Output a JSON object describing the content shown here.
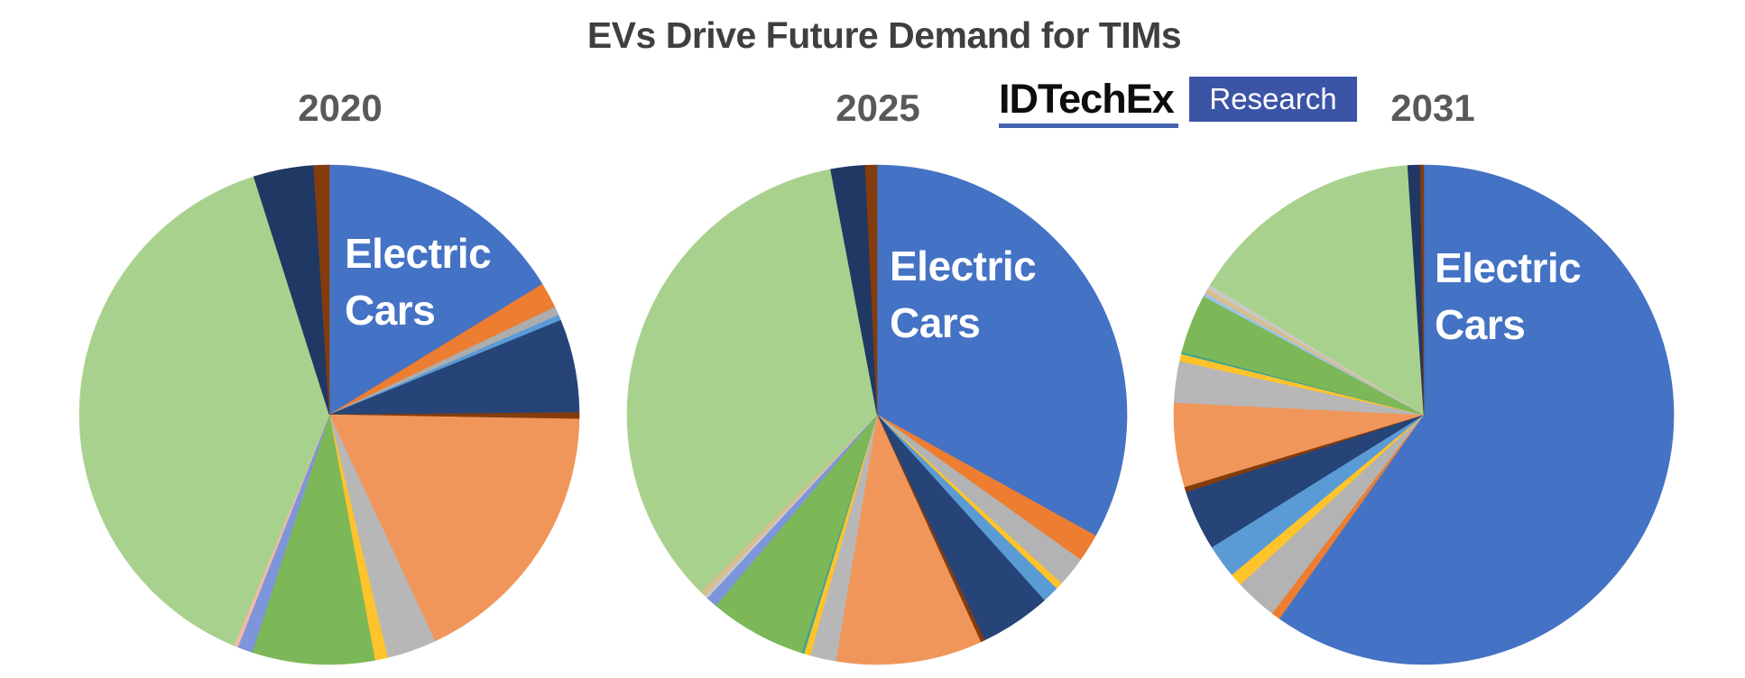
{
  "title": {
    "text": "EVs Drive Future Demand for TIMs"
  },
  "logo": {
    "brand": "IDTechEx",
    "label": "Research",
    "box_color": "#3b54a6",
    "underline_color": "#4465af"
  },
  "annotation_text": "Electric\nCars",
  "chart_data": [
    {
      "type": "pie",
      "title": "2020",
      "annotation": "Electric Cars",
      "angle_unit": "degrees clockwise from 12 o'clock",
      "slices": [
        {
          "label": "Electric Cars",
          "deg": 58.5,
          "pct": 16.3,
          "color": "#4472C4"
        },
        {
          "label": "",
          "deg": 6.0,
          "pct": 1.7,
          "color": "#ED7D31"
        },
        {
          "label": "",
          "deg": 2.0,
          "pct": 0.6,
          "color": "#ADADAD"
        },
        {
          "label": "",
          "deg": 1.3,
          "pct": 0.4,
          "color": "#5B9BD5"
        },
        {
          "label": "",
          "deg": 21.7,
          "pct": 6.0,
          "color": "#264478"
        },
        {
          "label": "",
          "deg": 1.5,
          "pct": 0.4,
          "color": "#843C0C"
        },
        {
          "label": "",
          "deg": 64.0,
          "pct": 17.8,
          "color": "#F0965A"
        },
        {
          "label": "",
          "deg": 11.5,
          "pct": 3.2,
          "color": "#B7B7B7"
        },
        {
          "label": "",
          "deg": 3.0,
          "pct": 0.8,
          "color": "#FFC32B"
        },
        {
          "label": "",
          "deg": 28.5,
          "pct": 7.9,
          "color": "#7CB857"
        },
        {
          "label": "",
          "deg": 3.5,
          "pct": 1.0,
          "color": "#7D95DB"
        },
        {
          "label": "",
          "deg": 0.9,
          "pct": 0.3,
          "color": "#F3B8A8"
        },
        {
          "label": "",
          "deg": 140.0,
          "pct": 38.9,
          "color": "#A9D18E"
        },
        {
          "label": "",
          "deg": 14.0,
          "pct": 3.9,
          "color": "#1F3864"
        },
        {
          "label": "",
          "deg": 3.6,
          "pct": 1.0,
          "color": "#843C0C"
        }
      ]
    },
    {
      "type": "pie",
      "title": "2025",
      "annotation": "Electric Cars",
      "angle_unit": "degrees clockwise from 12 o'clock",
      "slices": [
        {
          "label": "Electric Cars",
          "deg": 119.0,
          "pct": 33.1,
          "color": "#4472C4"
        },
        {
          "label": "",
          "deg": 6.5,
          "pct": 1.8,
          "color": "#ED7D31"
        },
        {
          "label": "",
          "deg": 7.0,
          "pct": 1.9,
          "color": "#B3B3B3"
        },
        {
          "label": "",
          "deg": 1.6,
          "pct": 0.4,
          "color": "#FFC32B"
        },
        {
          "label": "",
          "deg": 3.9,
          "pct": 1.1,
          "color": "#5B9BD5"
        },
        {
          "label": "",
          "deg": 16.5,
          "pct": 4.6,
          "color": "#264478"
        },
        {
          "label": "",
          "deg": 1.0,
          "pct": 0.3,
          "color": "#843C0C"
        },
        {
          "label": "",
          "deg": 34.0,
          "pct": 9.4,
          "color": "#F0965A"
        },
        {
          "label": "",
          "deg": 6.0,
          "pct": 1.7,
          "color": "#B7B7B7"
        },
        {
          "label": "",
          "deg": 1.5,
          "pct": 0.4,
          "color": "#FFC32B"
        },
        {
          "label": "",
          "deg": 0.6,
          "pct": 0.2,
          "color": "#42A58E"
        },
        {
          "label": "",
          "deg": 22.6,
          "pct": 6.3,
          "color": "#7CB857"
        },
        {
          "label": "",
          "deg": 2.6,
          "pct": 0.7,
          "color": "#7D95DB"
        },
        {
          "label": "",
          "deg": 0.7,
          "pct": 0.2,
          "color": "#C9C9C9"
        },
        {
          "label": "",
          "deg": 1.3,
          "pct": 0.4,
          "color": "#D8BD8E"
        },
        {
          "label": "",
          "deg": 124.5,
          "pct": 34.6,
          "color": "#A9D18E"
        },
        {
          "label": "",
          "deg": 8.0,
          "pct": 2.2,
          "color": "#1F3864"
        },
        {
          "label": "",
          "deg": 2.7,
          "pct": 0.8,
          "color": "#843C0C"
        }
      ]
    },
    {
      "type": "pie",
      "title": "2031",
      "annotation": "Electric Cars",
      "angle_unit": "degrees clockwise from 12 o'clock",
      "slices": [
        {
          "label": "Electric Cars",
          "deg": 215.3,
          "pct": 59.8,
          "color": "#4472C4"
        },
        {
          "label": "",
          "deg": 2.1,
          "pct": 0.6,
          "color": "#ED7D31"
        },
        {
          "label": "",
          "deg": 9.8,
          "pct": 2.7,
          "color": "#B3B3B3"
        },
        {
          "label": "",
          "deg": 3.0,
          "pct": 0.8,
          "color": "#FFC32B"
        },
        {
          "label": "",
          "deg": 7.8,
          "pct": 2.2,
          "color": "#5B9BD5"
        },
        {
          "label": "",
          "deg": 14.0,
          "pct": 3.9,
          "color": "#264478"
        },
        {
          "label": "",
          "deg": 1.2,
          "pct": 0.3,
          "color": "#843C0C"
        },
        {
          "label": "",
          "deg": 19.6,
          "pct": 5.4,
          "color": "#F0965A"
        },
        {
          "label": "",
          "deg": 9.6,
          "pct": 2.7,
          "color": "#B7B7B7"
        },
        {
          "label": "",
          "deg": 1.7,
          "pct": 0.5,
          "color": "#FFC32B"
        },
        {
          "label": "",
          "deg": 0.5,
          "pct": 0.1,
          "color": "#42A58E"
        },
        {
          "label": "",
          "deg": 13.7,
          "pct": 3.8,
          "color": "#7CB857"
        },
        {
          "label": "",
          "deg": 0.8,
          "pct": 0.2,
          "color": "#9DC3E6"
        },
        {
          "label": "",
          "deg": 1.2,
          "pct": 0.3,
          "color": "#D8BD8E"
        },
        {
          "label": "",
          "deg": 1.0,
          "pct": 0.3,
          "color": "#C9C9C9"
        },
        {
          "label": "",
          "deg": 55.0,
          "pct": 15.3,
          "color": "#A9D18E"
        },
        {
          "label": "",
          "deg": 2.9,
          "pct": 0.8,
          "color": "#1F3864"
        },
        {
          "label": "",
          "deg": 0.8,
          "pct": 0.2,
          "color": "#843C0C"
        }
      ]
    }
  ]
}
